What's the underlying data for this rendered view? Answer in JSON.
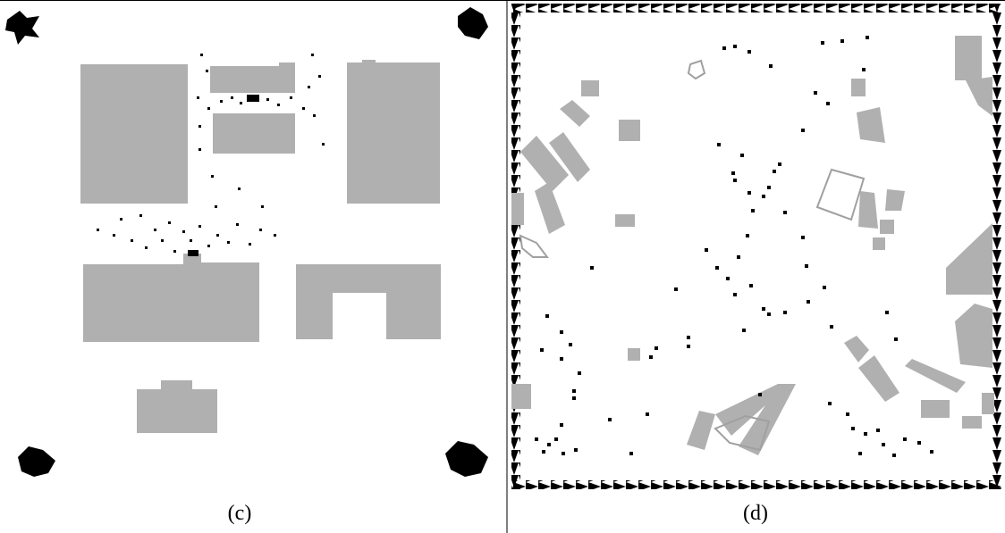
{
  "panels": [
    {
      "caption": "(c)"
    },
    {
      "caption": "(d)"
    }
  ]
}
